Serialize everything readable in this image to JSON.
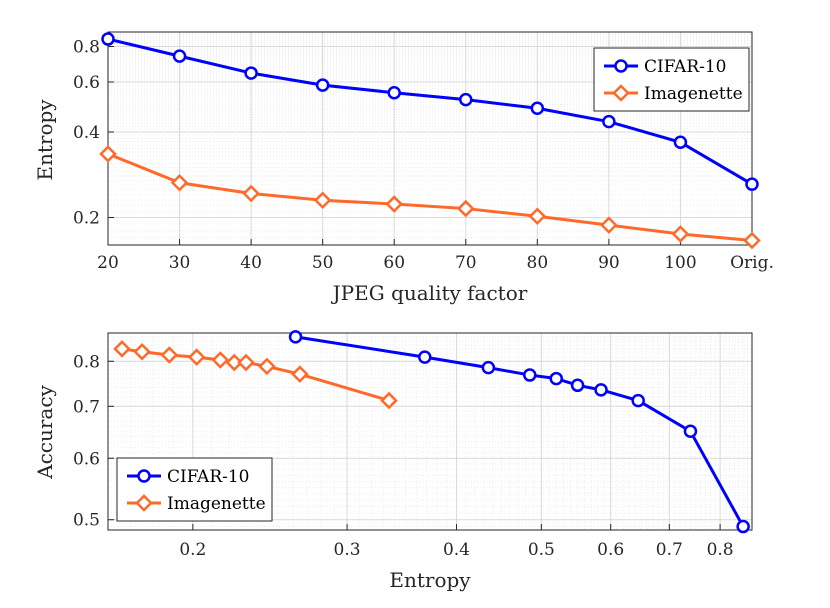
{
  "chart_data": [
    {
      "type": "line",
      "xlabel": "JPEG quality factor",
      "ylabel": "Entropy",
      "categories": [
        "20",
        "30",
        "40",
        "50",
        "60",
        "70",
        "80",
        "90",
        "100",
        "Orig."
      ],
      "yscale": "log",
      "ylim": [
        0.16,
        0.9
      ],
      "yticks": [
        0.2,
        0.4,
        0.6,
        0.8
      ],
      "ytick_labels": [
        "0.2",
        "0.4",
        "0.6",
        "0.8"
      ],
      "grid": true,
      "legend": "top-right",
      "series": [
        {
          "name": "CIFAR-10",
          "color": "#0000ff",
          "marker": "circle",
          "values": [
            0.85,
            0.74,
            0.645,
            0.585,
            0.55,
            0.52,
            0.485,
            0.435,
            0.368,
            0.262
          ]
        },
        {
          "name": "Imagenette",
          "color": "#ff6929",
          "marker": "diamond",
          "values": [
            0.335,
            0.265,
            0.243,
            0.23,
            0.223,
            0.215,
            0.202,
            0.188,
            0.175,
            0.166
          ]
        }
      ]
    },
    {
      "type": "line",
      "xlabel": "Entropy",
      "ylabel": "Accuracy",
      "xscale": "log",
      "yscale": "log",
      "xlim": [
        0.16,
        0.87
      ],
      "ylim": [
        0.485,
        0.87
      ],
      "xticks": [
        0.2,
        0.3,
        0.4,
        0.5,
        0.6,
        0.7,
        0.8
      ],
      "xtick_labels": [
        "0.2",
        "0.3",
        "0.4",
        "0.5",
        "0.6",
        "0.7",
        "0.8"
      ],
      "yticks": [
        0.5,
        0.6,
        0.7,
        0.8
      ],
      "ytick_labels": [
        "0.5",
        "0.6",
        "0.7",
        "0.8"
      ],
      "grid": true,
      "legend": "bottom-left",
      "series": [
        {
          "name": "CIFAR-10",
          "color": "#0000ff",
          "marker": "circle",
          "x": [
            0.262,
            0.368,
            0.435,
            0.485,
            0.52,
            0.55,
            0.585,
            0.645,
            0.74,
            0.85
          ],
          "y": [
            0.86,
            0.81,
            0.785,
            0.768,
            0.76,
            0.745,
            0.735,
            0.712,
            0.65,
            0.49
          ]
        },
        {
          "name": "Imagenette",
          "color": "#ff6929",
          "marker": "diamond",
          "x": [
            0.166,
            0.175,
            0.188,
            0.202,
            0.215,
            0.223,
            0.23,
            0.243,
            0.265,
            0.335
          ],
          "y": [
            0.83,
            0.823,
            0.815,
            0.81,
            0.803,
            0.797,
            0.797,
            0.788,
            0.77,
            0.712
          ]
        }
      ]
    }
  ]
}
